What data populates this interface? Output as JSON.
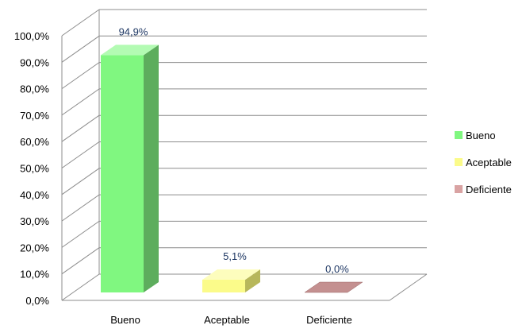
{
  "chart_data": {
    "type": "bar",
    "style": "3d-column",
    "categories": [
      "Bueno",
      "Aceptable",
      "Deficiente"
    ],
    "values": [
      94.9,
      5.1,
      0.0
    ],
    "value_labels": [
      "94,9%",
      "5,1%",
      "0,0%"
    ],
    "ylim": [
      0,
      100
    ],
    "yticks": [
      "0,0%",
      "10,0%",
      "20,0%",
      "30,0%",
      "40,0%",
      "50,0%",
      "60,0%",
      "70,0%",
      "80,0%",
      "90,0%",
      "100,0%"
    ],
    "grid": true,
    "legend_position": "right",
    "legend": [
      "Bueno",
      "Aceptable",
      "Deficiente"
    ],
    "colors": {
      "Bueno": {
        "front": "#80f780",
        "top": "#b3fbb3",
        "side": "#5dad5d"
      },
      "Aceptable": {
        "front": "#fbfb8a",
        "top": "#fdfdbd",
        "side": "#b7b75b"
      },
      "Deficiente": {
        "front": "#d9a3a3",
        "top": "#c49090",
        "side": "#9a6767"
      }
    },
    "label_color": "#1f3864",
    "grid_color": "#8c8c8c"
  }
}
